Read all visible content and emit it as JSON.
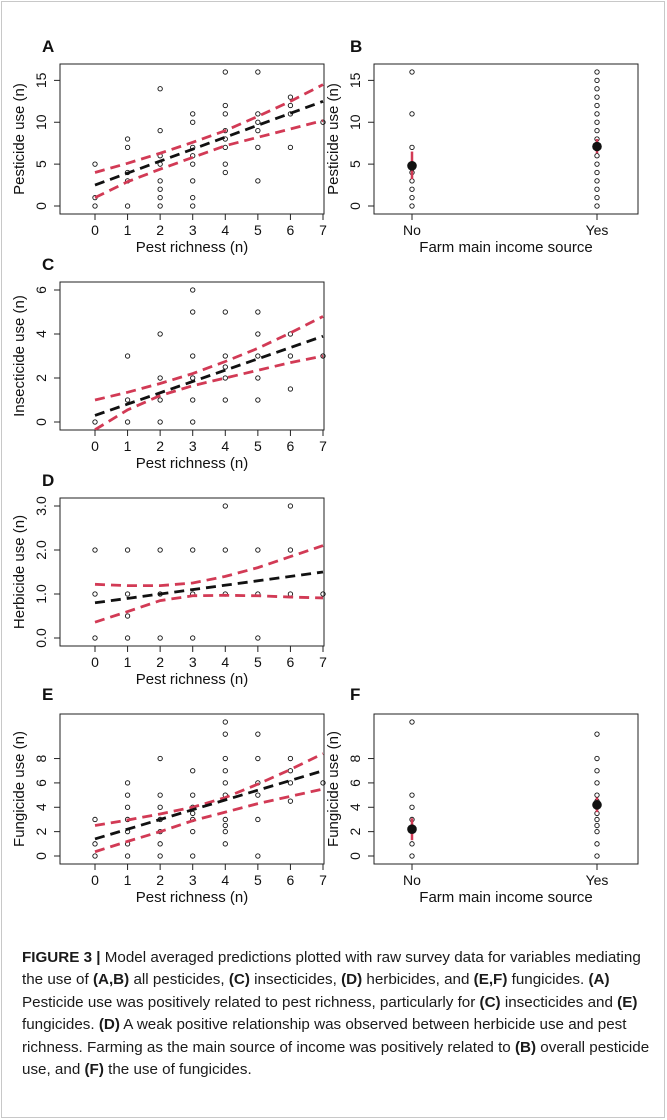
{
  "figure_label": "FIGURE 3 |",
  "caption_parts": [
    {
      "text": " Model averaged predictions plotted with raw survey data for variables mediating the use of ",
      "bold": false
    },
    {
      "text": "(A,B)",
      "bold": true
    },
    {
      "text": " all pesticides, ",
      "bold": false
    },
    {
      "text": "(C)",
      "bold": true
    },
    {
      "text": " insecticides, ",
      "bold": false
    },
    {
      "text": "(D)",
      "bold": true
    },
    {
      "text": " herbicides, and ",
      "bold": false
    },
    {
      "text": "(E,F)",
      "bold": true
    },
    {
      "text": " fungicides. ",
      "bold": false
    },
    {
      "text": "(A)",
      "bold": true
    },
    {
      "text": " Pesticide use was positively related to pest richness, particularly for ",
      "bold": false
    },
    {
      "text": "(C)",
      "bold": true
    },
    {
      "text": " insecticides and ",
      "bold": false
    },
    {
      "text": "(E)",
      "bold": true
    },
    {
      "text": " fungicides. ",
      "bold": false
    },
    {
      "text": "(D)",
      "bold": true
    },
    {
      "text": " A weak positive relationship was observed between herbicide use and pest richness. Farming as the main source of income was positively related to ",
      "bold": false
    },
    {
      "text": "(B)",
      "bold": true
    },
    {
      "text": " overall pesticide use, and ",
      "bold": false
    },
    {
      "text": "(F)",
      "bold": true
    },
    {
      "text": " the use of fungicides.",
      "bold": false
    }
  ],
  "colors": {
    "fit_line": "#111111",
    "ci_line": "#d23a55",
    "points": "#111111",
    "axes": "#222222"
  },
  "chart_data": [
    {
      "panel": "A",
      "type": "scatter",
      "xlabel": "Pest richness (n)",
      "ylabel": "Pesticide use (n)",
      "xlim": [
        0,
        7
      ],
      "ylim": [
        0,
        16
      ],
      "xticks": [
        0,
        1,
        2,
        3,
        4,
        5,
        6,
        7
      ],
      "xtick_labels": [
        "0",
        "1",
        "2",
        "3",
        "4",
        "5",
        "6",
        "7"
      ],
      "yticks": [
        0,
        5,
        10,
        15
      ],
      "ytick_labels": [
        "0",
        "5",
        "10",
        "15"
      ],
      "points": [
        [
          0,
          0
        ],
        [
          0,
          1
        ],
        [
          0,
          5
        ],
        [
          1,
          0
        ],
        [
          1,
          3
        ],
        [
          1,
          4
        ],
        [
          1,
          7
        ],
        [
          1,
          8
        ],
        [
          2,
          0
        ],
        [
          2,
          1
        ],
        [
          2,
          2
        ],
        [
          2,
          3
        ],
        [
          2,
          5
        ],
        [
          2,
          6
        ],
        [
          2,
          9
        ],
        [
          2,
          14
        ],
        [
          3,
          0
        ],
        [
          3,
          1
        ],
        [
          3,
          3
        ],
        [
          3,
          5
        ],
        [
          3,
          6
        ],
        [
          3,
          7
        ],
        [
          3,
          10
        ],
        [
          3,
          11
        ],
        [
          4,
          4
        ],
        [
          4,
          5
        ],
        [
          4,
          7
        ],
        [
          4,
          8
        ],
        [
          4,
          9
        ],
        [
          4,
          11
        ],
        [
          4,
          12
        ],
        [
          4,
          16
        ],
        [
          5,
          3
        ],
        [
          5,
          7
        ],
        [
          5,
          9
        ],
        [
          5,
          10
        ],
        [
          5,
          11
        ],
        [
          5,
          16
        ],
        [
          6,
          7
        ],
        [
          6,
          11
        ],
        [
          6,
          12
        ],
        [
          6,
          13
        ],
        [
          7,
          10
        ]
      ],
      "fit": {
        "x": [
          0,
          7
        ],
        "y": [
          2.5,
          12.5
        ]
      },
      "ci_upper": {
        "x": [
          0,
          1,
          2,
          3,
          4,
          5,
          6,
          7
        ],
        "y": [
          4.0,
          5.1,
          6.3,
          7.6,
          9.0,
          10.7,
          12.5,
          14.5
        ]
      },
      "ci_lower": {
        "x": [
          0,
          1,
          2,
          3,
          4,
          5,
          6,
          7
        ],
        "y": [
          1.0,
          2.9,
          4.4,
          5.8,
          7.2,
          8.2,
          9.2,
          10.2
        ]
      }
    },
    {
      "panel": "B",
      "type": "scatter",
      "xlabel": "Farm main income source",
      "ylabel": "Pesticide use (n)",
      "xlim": [
        0,
        1
      ],
      "ylim": [
        0,
        16
      ],
      "xticks": [
        0,
        1
      ],
      "xtick_labels": [
        "No",
        "Yes"
      ],
      "yticks": [
        0,
        5,
        10,
        15
      ],
      "ytick_labels": [
        "0",
        "5",
        "10",
        "15"
      ],
      "points": [
        [
          0,
          0
        ],
        [
          0,
          1
        ],
        [
          0,
          2
        ],
        [
          0,
          3
        ],
        [
          0,
          4
        ],
        [
          0,
          5
        ],
        [
          0,
          7
        ],
        [
          0,
          11
        ],
        [
          0,
          16
        ],
        [
          1,
          0
        ],
        [
          1,
          1
        ],
        [
          1,
          2
        ],
        [
          1,
          3
        ],
        [
          1,
          4
        ],
        [
          1,
          5
        ],
        [
          1,
          6
        ],
        [
          1,
          7
        ],
        [
          1,
          8
        ],
        [
          1,
          9
        ],
        [
          1,
          10
        ],
        [
          1,
          11
        ],
        [
          1,
          12
        ],
        [
          1,
          13
        ],
        [
          1,
          14
        ],
        [
          1,
          15
        ],
        [
          1,
          16
        ]
      ],
      "means": [
        [
          0,
          4.8
        ],
        [
          1,
          7.1
        ]
      ],
      "ci": [
        [
          0,
          3.2,
          6.5
        ],
        [
          1,
          6.3,
          8.0
        ]
      ]
    },
    {
      "panel": "C",
      "type": "scatter",
      "xlabel": "Pest richness (n)",
      "ylabel": "Insecticide use (n)",
      "xlim": [
        0,
        7
      ],
      "ylim": [
        0,
        6
      ],
      "xticks": [
        0,
        1,
        2,
        3,
        4,
        5,
        6,
        7
      ],
      "xtick_labels": [
        "0",
        "1",
        "2",
        "3",
        "4",
        "5",
        "6",
        "7"
      ],
      "yticks": [
        0,
        2,
        4,
        6
      ],
      "ytick_labels": [
        "0",
        "2",
        "4",
        "6"
      ],
      "points": [
        [
          0,
          0
        ],
        [
          1,
          0
        ],
        [
          1,
          1
        ],
        [
          1,
          3
        ],
        [
          2,
          0
        ],
        [
          2,
          1
        ],
        [
          2,
          2
        ],
        [
          2,
          4
        ],
        [
          3,
          0
        ],
        [
          3,
          1
        ],
        [
          3,
          2
        ],
        [
          3,
          3
        ],
        [
          3,
          5
        ],
        [
          3,
          6
        ],
        [
          4,
          1
        ],
        [
          4,
          2
        ],
        [
          4,
          2.5
        ],
        [
          4,
          3
        ],
        [
          4,
          5
        ],
        [
          5,
          1
        ],
        [
          5,
          2
        ],
        [
          5,
          3
        ],
        [
          5,
          4
        ],
        [
          5,
          5
        ],
        [
          6,
          1.5
        ],
        [
          6,
          3
        ],
        [
          6,
          4
        ],
        [
          7,
          3
        ]
      ],
      "fit": {
        "x": [
          0,
          7
        ],
        "y": [
          0.3,
          3.9
        ]
      },
      "ci_upper": {
        "x": [
          0,
          1,
          2,
          3,
          4,
          5,
          6,
          7
        ],
        "y": [
          1.0,
          1.35,
          1.75,
          2.2,
          2.75,
          3.35,
          4.05,
          4.8
        ]
      },
      "ci_lower": {
        "x": [
          0,
          1,
          2,
          3,
          4,
          5,
          6,
          7
        ],
        "y": [
          -0.35,
          0.55,
          1.2,
          1.65,
          2.0,
          2.35,
          2.7,
          3.0
        ]
      }
    },
    {
      "panel": "D",
      "type": "scatter",
      "xlabel": "Pest richness (n)",
      "ylabel": "Herbicide use (n)",
      "xlim": [
        0,
        7
      ],
      "ylim": [
        0,
        3
      ],
      "xticks": [
        0,
        1,
        2,
        3,
        4,
        5,
        6,
        7
      ],
      "xtick_labels": [
        "0",
        "1",
        "2",
        "3",
        "4",
        "5",
        "6",
        "7"
      ],
      "yticks": [
        0,
        1,
        2,
        3
      ],
      "ytick_labels": [
        "0.0",
        "1.0",
        "2.0",
        "3.0"
      ],
      "points": [
        [
          0,
          0
        ],
        [
          0,
          1
        ],
        [
          0,
          2
        ],
        [
          1,
          0
        ],
        [
          1,
          0.5
        ],
        [
          1,
          1
        ],
        [
          1,
          2
        ],
        [
          2,
          0
        ],
        [
          2,
          1
        ],
        [
          2,
          2
        ],
        [
          3,
          0
        ],
        [
          3,
          1
        ],
        [
          3,
          2
        ],
        [
          4,
          1
        ],
        [
          4,
          2
        ],
        [
          4,
          3
        ],
        [
          5,
          0
        ],
        [
          5,
          1
        ],
        [
          5,
          2
        ],
        [
          6,
          1
        ],
        [
          6,
          2
        ],
        [
          6,
          3
        ],
        [
          7,
          1
        ]
      ],
      "fit": {
        "x": [
          0,
          7
        ],
        "y": [
          0.8,
          1.5
        ]
      },
      "ci_upper": {
        "x": [
          0,
          1,
          2,
          3,
          4,
          5,
          6,
          7
        ],
        "y": [
          1.22,
          1.19,
          1.19,
          1.25,
          1.4,
          1.6,
          1.85,
          2.1
        ]
      },
      "ci_lower": {
        "x": [
          0,
          1,
          2,
          3,
          4,
          5,
          6,
          7
        ],
        "y": [
          0.36,
          0.6,
          0.85,
          0.96,
          0.97,
          0.96,
          0.93,
          0.91
        ]
      }
    },
    {
      "panel": "E",
      "type": "scatter",
      "xlabel": "Pest richness (n)",
      "ylabel": "Fungicide use (n)",
      "xlim": [
        0,
        7
      ],
      "ylim": [
        0,
        11
      ],
      "xticks": [
        0,
        1,
        2,
        3,
        4,
        5,
        6,
        7
      ],
      "xtick_labels": [
        "0",
        "1",
        "2",
        "3",
        "4",
        "5",
        "6",
        "7"
      ],
      "yticks": [
        0,
        2,
        4,
        6,
        8
      ],
      "ytick_labels": [
        "0",
        "2",
        "4",
        "6",
        "8"
      ],
      "points": [
        [
          0,
          0
        ],
        [
          0,
          1
        ],
        [
          0,
          3
        ],
        [
          1,
          0
        ],
        [
          1,
          1
        ],
        [
          1,
          2
        ],
        [
          1,
          3
        ],
        [
          1,
          4
        ],
        [
          1,
          5
        ],
        [
          1,
          6
        ],
        [
          2,
          0
        ],
        [
          2,
          1
        ],
        [
          2,
          2
        ],
        [
          2,
          3
        ],
        [
          2,
          4
        ],
        [
          2,
          5
        ],
        [
          2,
          8
        ],
        [
          3,
          0
        ],
        [
          3,
          2
        ],
        [
          3,
          3
        ],
        [
          3,
          3.5
        ],
        [
          3,
          4
        ],
        [
          3,
          5
        ],
        [
          3,
          7
        ],
        [
          4,
          1
        ],
        [
          4,
          2
        ],
        [
          4,
          2.5
        ],
        [
          4,
          3
        ],
        [
          4,
          5
        ],
        [
          4,
          6
        ],
        [
          4,
          7
        ],
        [
          4,
          8
        ],
        [
          4,
          10
        ],
        [
          4,
          11
        ],
        [
          5,
          0
        ],
        [
          5,
          3
        ],
        [
          5,
          5
        ],
        [
          5,
          6
        ],
        [
          5,
          8
        ],
        [
          5,
          10
        ],
        [
          6,
          4.5
        ],
        [
          6,
          6
        ],
        [
          6,
          7
        ],
        [
          6,
          8
        ],
        [
          7,
          6
        ]
      ],
      "fit": {
        "x": [
          0,
          7
        ],
        "y": [
          1.4,
          7.0
        ]
      },
      "ci_upper": {
        "x": [
          0,
          1,
          2,
          3,
          4,
          5,
          6,
          7
        ],
        "y": [
          2.5,
          2.95,
          3.45,
          4.0,
          4.8,
          5.9,
          7.1,
          8.4
        ]
      },
      "ci_lower": {
        "x": [
          0,
          1,
          2,
          3,
          4,
          5,
          6,
          7
        ],
        "y": [
          0.35,
          1.2,
          2.0,
          2.9,
          3.6,
          4.3,
          4.9,
          5.5
        ]
      }
    },
    {
      "panel": "F",
      "type": "scatter",
      "xlabel": "Farm main income source",
      "ylabel": "Fungicide use (n)",
      "xlim": [
        0,
        1
      ],
      "ylim": [
        0,
        11
      ],
      "xticks": [
        0,
        1
      ],
      "xtick_labels": [
        "No",
        "Yes"
      ],
      "yticks": [
        0,
        2,
        4,
        6,
        8
      ],
      "ytick_labels": [
        "0",
        "2",
        "4",
        "6",
        "8"
      ],
      "points": [
        [
          0,
          0
        ],
        [
          0,
          1
        ],
        [
          0,
          2
        ],
        [
          0,
          3
        ],
        [
          0,
          4
        ],
        [
          0,
          5
        ],
        [
          0,
          11
        ],
        [
          1,
          0
        ],
        [
          1,
          1
        ],
        [
          1,
          2
        ],
        [
          1,
          2.5
        ],
        [
          1,
          3
        ],
        [
          1,
          3.5
        ],
        [
          1,
          4
        ],
        [
          1,
          4.5
        ],
        [
          1,
          5
        ],
        [
          1,
          6
        ],
        [
          1,
          7
        ],
        [
          1,
          8
        ],
        [
          1,
          10
        ]
      ],
      "means": [
        [
          0,
          2.2
        ],
        [
          1,
          4.2
        ]
      ],
      "ci": [
        [
          0,
          1.3,
          3.1
        ],
        [
          1,
          3.6,
          4.8
        ]
      ]
    }
  ]
}
